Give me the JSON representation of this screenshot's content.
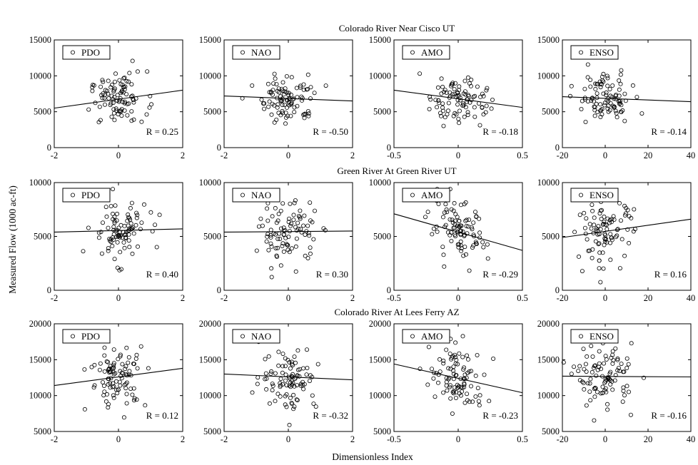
{
  "figure": {
    "ylabel": "Measured Flow (1000 ac-ft)",
    "xlabel": "Dimensionless Index"
  },
  "chart_data": {
    "type": "scatter",
    "rows": [
      {
        "title": "Colorado River Near Cisco UT",
        "ylim": [
          0,
          15000
        ],
        "yticks": [
          "0",
          "5000",
          "10000",
          "15000"
        ],
        "yticks_values": [
          0,
          5000,
          10000,
          15000
        ],
        "y_center": 6800,
        "y_spread": 1700,
        "panels": [
          {
            "legend": "PDO",
            "r_label": "R = 0.25",
            "xlim": [
              -2,
              2
            ],
            "xticks": [
              "-2",
              "0",
              "2"
            ],
            "xticks_values": [
              -2,
              0,
              2
            ],
            "fit": [
              [
                -2,
                5500
              ],
              [
                2,
                8000
              ]
            ]
          },
          {
            "legend": "NAO",
            "r_label": "R = -0.50",
            "xlim": [
              -2,
              2
            ],
            "xticks": [
              "-2",
              "0",
              "2"
            ],
            "xticks_values": [
              -2,
              0,
              2
            ],
            "fit": [
              [
                -2,
                7200
              ],
              [
                2,
                6500
              ]
            ]
          },
          {
            "legend": "AMO",
            "r_label": "R = -0.18",
            "xlim": [
              -0.5,
              0.5
            ],
            "xticks": [
              "-0.5",
              "0",
              "0.5"
            ],
            "xticks_values": [
              -0.5,
              0,
              0.5
            ],
            "fit": [
              [
                -0.5,
                8000
              ],
              [
                0.5,
                5600
              ]
            ]
          },
          {
            "legend": "ENSO",
            "r_label": "R = -0.14",
            "xlim": [
              -20,
              40
            ],
            "xticks": [
              "-20",
              "0",
              "20",
              "40"
            ],
            "xticks_values": [
              -20,
              0,
              20,
              40
            ],
            "fit": [
              [
                -20,
                7100
              ],
              [
                40,
                6400
              ]
            ]
          }
        ]
      },
      {
        "title": "Green River At Green River UT",
        "ylim": [
          0,
          10000
        ],
        "yticks": [
          "0",
          "5000",
          "10000"
        ],
        "yticks_values": [
          0,
          5000,
          10000
        ],
        "y_center": 5300,
        "y_spread": 1400,
        "panels": [
          {
            "legend": "PDO",
            "r_label": "R = 0.40",
            "xlim": [
              -2,
              2
            ],
            "xticks": [
              "-2",
              "0",
              "2"
            ],
            "xticks_values": [
              -2,
              0,
              2
            ],
            "fit": [
              [
                -2,
                5400
              ],
              [
                2,
                5700
              ]
            ]
          },
          {
            "legend": "NAO",
            "r_label": "R = 0.30",
            "xlim": [
              -2,
              2
            ],
            "xticks": [
              "-2",
              "0",
              "2"
            ],
            "xticks_values": [
              -2,
              0,
              2
            ],
            "fit": [
              [
                -2,
                5400
              ],
              [
                2,
                5500
              ]
            ]
          },
          {
            "legend": "AMO",
            "r_label": "R = -0.29",
            "xlim": [
              -0.5,
              0.5
            ],
            "xticks": [
              "-0.5",
              "0",
              "0.5"
            ],
            "xticks_values": [
              -0.5,
              0,
              0.5
            ],
            "fit": [
              [
                -0.5,
                7100
              ],
              [
                0.5,
                3700
              ]
            ]
          },
          {
            "legend": "ENSO",
            "r_label": "R = 0.16",
            "xlim": [
              -20,
              40
            ],
            "xticks": [
              "-20",
              "0",
              "20",
              "40"
            ],
            "xticks_values": [
              -20,
              0,
              20,
              40
            ],
            "fit": [
              [
                -20,
                4900
              ],
              [
                40,
                6600
              ]
            ]
          }
        ]
      },
      {
        "title": "Colorado River At Lees Ferry AZ",
        "ylim": [
          5000,
          20000
        ],
        "yticks": [
          "5000",
          "10000",
          "15000",
          "20000"
        ],
        "yticks_values": [
          5000,
          10000,
          15000,
          20000
        ],
        "y_center": 12600,
        "y_spread": 2200,
        "panels": [
          {
            "legend": "PDO",
            "r_label": "R = 0.12",
            "xlim": [
              -2,
              2
            ],
            "xticks": [
              "-2",
              "0",
              "2"
            ],
            "xticks_values": [
              -2,
              0,
              2
            ],
            "fit": [
              [
                -2,
                11400
              ],
              [
                2,
                13800
              ]
            ]
          },
          {
            "legend": "NAO",
            "r_label": "R = -0.32",
            "xlim": [
              -2,
              2
            ],
            "xticks": [
              "-2",
              "0",
              "2"
            ],
            "xticks_values": [
              -2,
              0,
              2
            ],
            "fit": [
              [
                -2,
                13000
              ],
              [
                2,
                12200
              ]
            ]
          },
          {
            "legend": "AMO",
            "r_label": "R = -0.23",
            "xlim": [
              -0.5,
              0.5
            ],
            "xticks": [
              "-0.5",
              "0",
              "0.5"
            ],
            "xticks_values": [
              -0.5,
              0,
              0.5
            ],
            "fit": [
              [
                -0.5,
                14400
              ],
              [
                0.5,
                10400
              ]
            ]
          },
          {
            "legend": "ENSO",
            "r_label": "R = -0.16",
            "xlim": [
              -20,
              40
            ],
            "xticks": [
              "-20",
              "0",
              "20",
              "40"
            ],
            "xticks_values": [
              -20,
              0,
              20,
              40
            ],
            "fit": [
              [
                -20,
                12700
              ],
              [
                40,
                12600
              ]
            ]
          }
        ]
      }
    ]
  }
}
